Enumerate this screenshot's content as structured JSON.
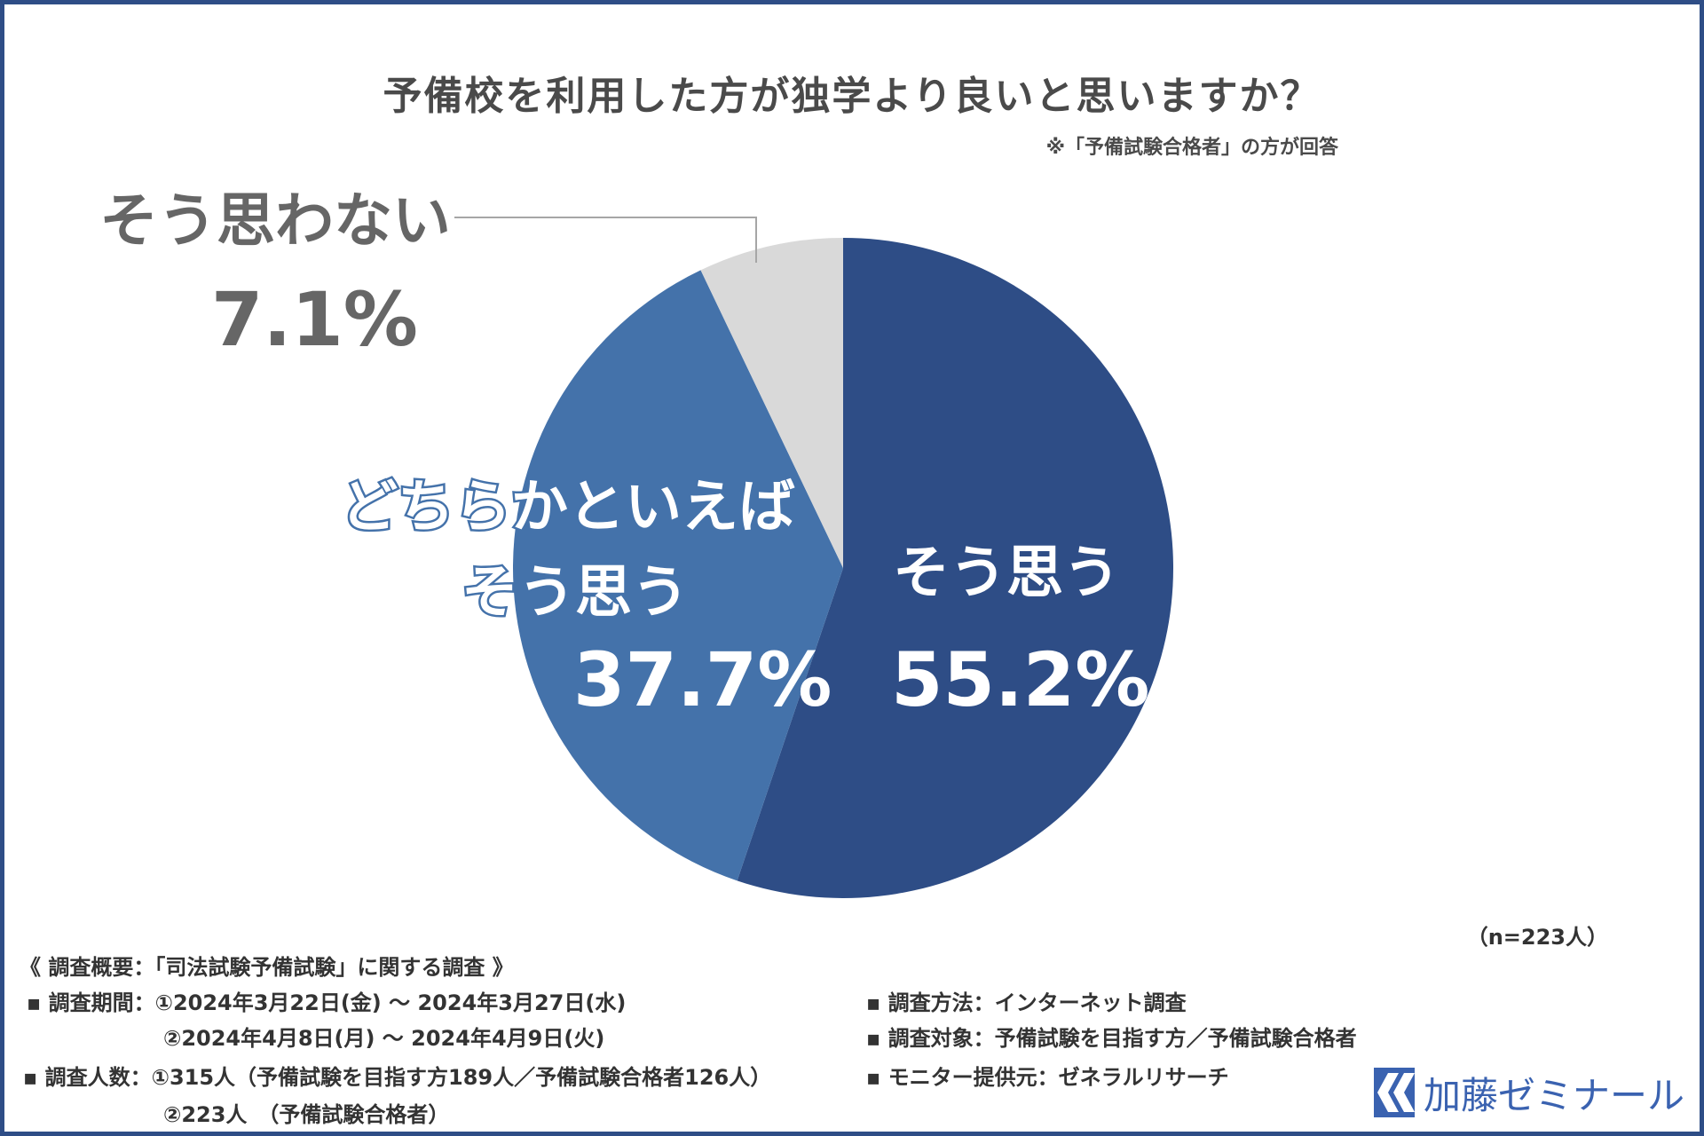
{
  "title": "予備校を利用した方が独学より良いと思いますか？",
  "note": "※「予備試験合格者」の方が回答",
  "chart_data": {
    "type": "pie",
    "slices": [
      {
        "label": "そう思う",
        "value": 55.2,
        "value_label": "55.2%",
        "color": "#2e4d86"
      },
      {
        "label": "どちらかといえばそう思う",
        "value": 37.7,
        "value_label": "37.7%",
        "color": "#4472aa"
      },
      {
        "label": "そう思わない",
        "value": 7.1,
        "value_label": "7.1%",
        "color": "#d9d9d9"
      }
    ],
    "start": "12 o'clock",
    "direction": "clockwise"
  },
  "labels": {
    "no_line1": "そう思わない",
    "no_pct": "7.1%",
    "mid_line1": "どちらかといえば",
    "mid_line2": "そう思う",
    "mid_pct": "37.7%",
    "yes_line1": "そう思う",
    "yes_pct": "55.2%"
  },
  "n_label": "（n=223人）",
  "survey": {
    "heading": "《 調査概要：「司法試験予備試験」に関する調査 》",
    "period_1": "▪ 調査期間：①2024年3月22日(金) ～ 2024年3月27日(水)",
    "period_2": "②2024年4月8日(月) ～ 2024年4月9日(火)",
    "count_1": "▪ 調査人数：①315人（予備試験を目指す方189人／予備試験合格者126人）",
    "count_2": "②223人　（予備試験合格者）",
    "method": "▪ 調査方法：インターネット調査",
    "target": "▪ 調査対象：予備試験を目指す方／予備試験合格者",
    "provider": "▪ モニター提供元：ゼネラルリサーチ"
  },
  "logo": {
    "text": "加藤ゼミナール",
    "color": "#3a62b0"
  },
  "colors": {
    "frame": "#2e4d86",
    "text": "#4a4a4a"
  }
}
